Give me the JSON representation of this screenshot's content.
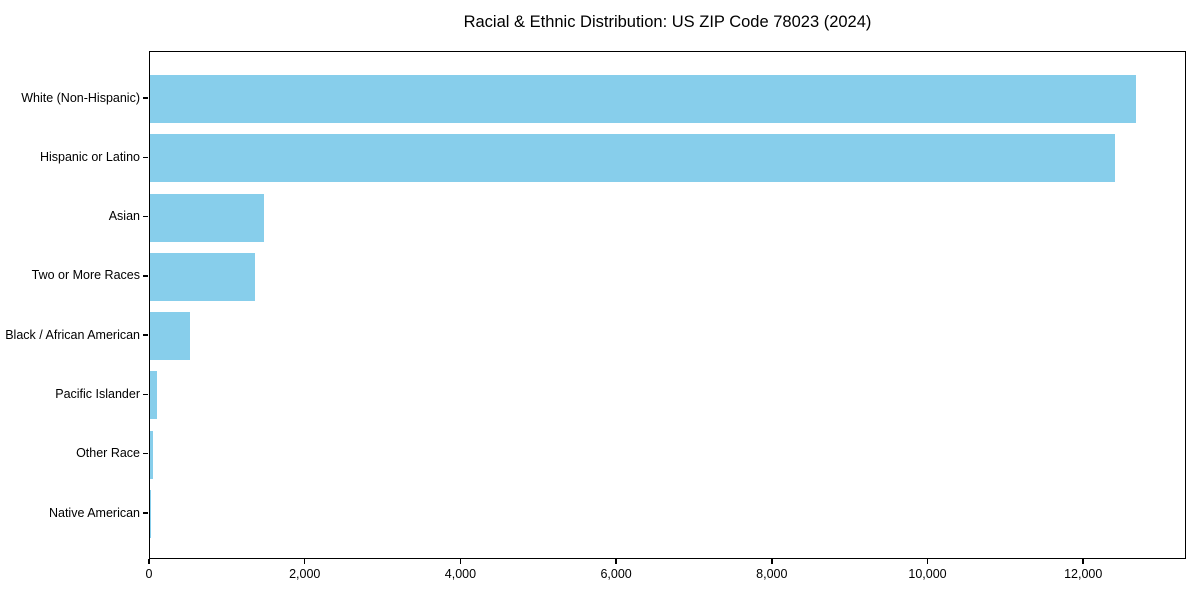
{
  "chart_data": {
    "type": "bar",
    "orientation": "horizontal",
    "title": "Racial & Ethnic Distribution: US ZIP Code 78023 (2024)",
    "categories": [
      "White (Non-Hispanic)",
      "Hispanic or Latino",
      "Asian",
      "Two or More Races",
      "Black / African American",
      "Pacific Islander",
      "Other Race",
      "Native American"
    ],
    "values": [
      12670,
      12390,
      1460,
      1355,
      510,
      90,
      40,
      10
    ],
    "bar_color": "#87CEEB",
    "xlabel": "",
    "ylabel": "",
    "xlim": [
      0,
      13320
    ],
    "xticks": {
      "values": [
        0,
        2000,
        4000,
        6000,
        8000,
        10000,
        12000
      ],
      "labels": [
        "0",
        "2,000",
        "4,000",
        "6,000",
        "8,000",
        "10,000",
        "12,000"
      ]
    },
    "grid": false,
    "legend": null,
    "frame_color": "#000000",
    "text_color": "#000000"
  }
}
